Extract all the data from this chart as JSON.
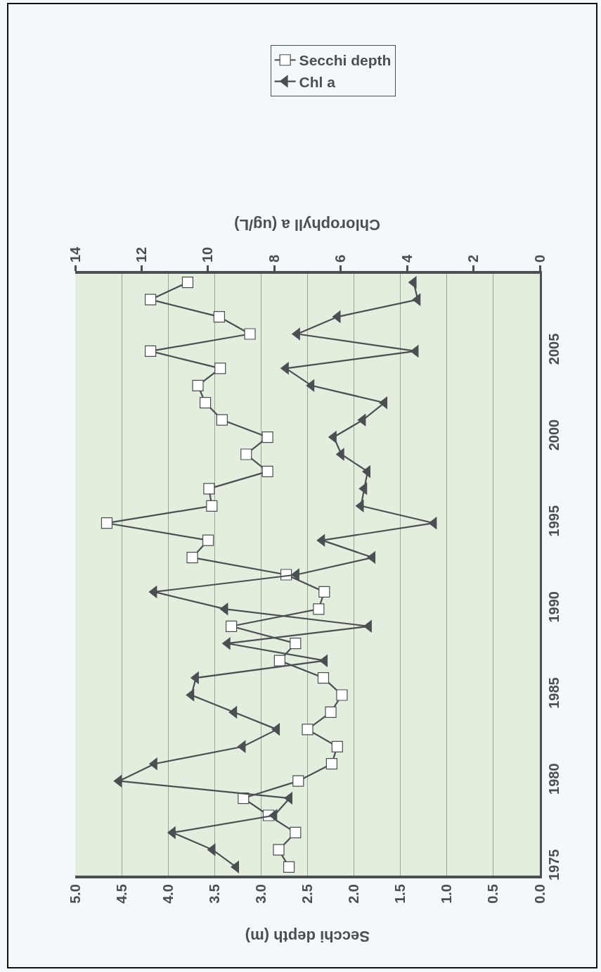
{
  "chart_data": {
    "type": "line",
    "orientation": "horizontal",
    "xlabel": "Secchi depth (m)",
    "x2label": "Chlorophyll a (ug/L)",
    "x": [
      1975,
      1976,
      1977,
      1978,
      1979,
      1980,
      1981,
      1982,
      1983,
      1984,
      1985,
      1986,
      1987,
      1988,
      1989,
      1990,
      1991,
      1992,
      1993,
      1994,
      1995,
      1996,
      1997,
      1998,
      1999,
      2000,
      2001,
      2002,
      2003,
      2004,
      2005,
      2006,
      2007,
      2008,
      2009
    ],
    "series": [
      {
        "name": "Secchi depth",
        "color": "#4a4f52",
        "marker": "square",
        "values": [
          2.7,
          2.81,
          2.63,
          2.92,
          3.19,
          2.6,
          2.24,
          2.18,
          2.5,
          2.25,
          2.13,
          2.33,
          2.8,
          2.63,
          3.32,
          2.38,
          2.32,
          2.73,
          3.74,
          3.57,
          4.66,
          3.53,
          3.56,
          2.93,
          3.16,
          2.93,
          3.42,
          3.6,
          3.68,
          3.44,
          4.19,
          3.12,
          3.45,
          4.19,
          3.79
        ]
      },
      {
        "name": "Chl a",
        "color": "#4a4f52",
        "marker": "triangle",
        "axis": "x2",
        "values": [
          9.15,
          9.86,
          11.06,
          8.0,
          7.54,
          12.68,
          11.61,
          8.95,
          7.92,
          9.21,
          10.5,
          10.36,
          6.48,
          9.41,
          5.15,
          9.48,
          11.62,
          7.33,
          5.04,
          6.56,
          3.19,
          5.39,
          5.29,
          5.19,
          5.98,
          6.21,
          5.33,
          4.68,
          6.88,
          7.65,
          3.74,
          7.31,
          6.09,
          3.68,
          3.8
        ]
      }
    ],
    "ylim": [
      1974.5,
      2009.5
    ],
    "yticks": [
      1975,
      1980,
      1985,
      1990,
      1995,
      2000,
      2005
    ],
    "xlim": [
      5,
      0
    ],
    "xticks": [
      {
        "value": 0,
        "label": "0.0"
      },
      {
        "value": 0.5,
        "label": "0.5"
      },
      {
        "value": 1,
        "label": "1.0"
      },
      {
        "value": 1.5,
        "label": "1.5"
      },
      {
        "value": 2,
        "label": "2.0"
      },
      {
        "value": 2.5,
        "label": "2.5"
      },
      {
        "value": 3,
        "label": "3.0"
      },
      {
        "value": 3.5,
        "label": "3.5"
      },
      {
        "value": 4,
        "label": "4.0"
      },
      {
        "value": 4.5,
        "label": "4.5"
      },
      {
        "value": 5,
        "label": "5.0"
      }
    ],
    "x2lim": [
      14,
      0
    ],
    "x2ticks": [
      0,
      2,
      4,
      6,
      8,
      10,
      12,
      14
    ],
    "grid": "x",
    "legend": "top",
    "line_style": "solid"
  }
}
